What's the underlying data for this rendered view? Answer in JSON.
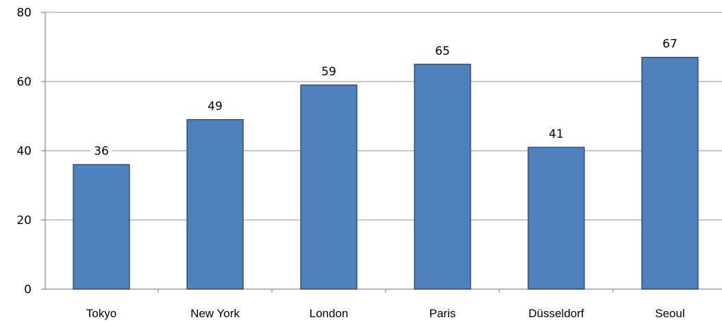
{
  "chart_data": {
    "type": "bar",
    "categories": [
      "Tokyo",
      "New York",
      "London",
      "Paris",
      "Düsseldorf",
      "Seoul"
    ],
    "values": [
      36,
      49,
      59,
      65,
      41,
      67
    ],
    "data_labels": [
      "36",
      "49",
      "59",
      "65",
      "41",
      "67"
    ],
    "y_ticks": [
      "0",
      "20",
      "40",
      "60",
      "80"
    ],
    "ylim": [
      0,
      80
    ],
    "grid": true,
    "colors": {
      "bar_fill": "#4f81bd",
      "bar_edge": "#1f3a5f",
      "grid": "#a6a6a6"
    }
  }
}
